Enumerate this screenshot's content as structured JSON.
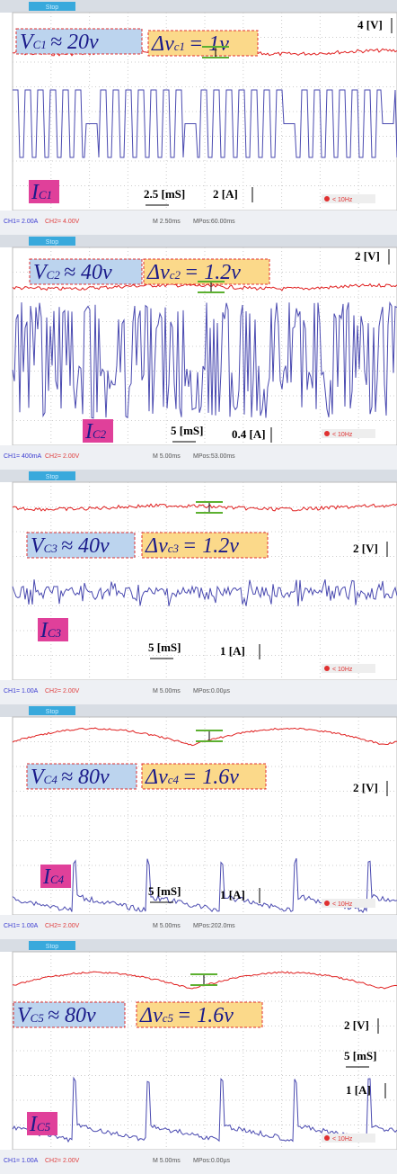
{
  "panels": [
    {
      "top": {
        "state": "Stop"
      },
      "voltage": {
        "main": "V",
        "sub": "C1",
        "rest": "≈ 20v"
      },
      "ripple": {
        "main": "Δv",
        "sub": "c1",
        "rest": "= 1v"
      },
      "current": {
        "main": "I",
        "sub": "C1"
      },
      "v_scale": "4 [V]",
      "time_scale": "2.5 [mS]",
      "a_scale": "2 [A]",
      "trigger": "< 10Hz",
      "status": [
        "CH1= 2.00A",
        "CH2= 4.00V",
        "M 2.50ms",
        "MPos:60.00ms"
      ]
    },
    {
      "top": {
        "state": "Stop"
      },
      "voltage": {
        "main": "V",
        "sub": "C2",
        "rest": "≈ 40v"
      },
      "ripple": {
        "main": "Δv",
        "sub": "c2",
        "rest": "= 1.2v"
      },
      "current": {
        "main": "I",
        "sub": "C2"
      },
      "v_scale": "2 [V]",
      "time_scale": "5 [mS]",
      "a_scale": "0.4 [A]",
      "trigger": "< 10Hz",
      "status": [
        "CH1= 400mA",
        "CH2= 2.00V",
        "M 5.00ms",
        "MPos:53.00ms"
      ]
    },
    {
      "top": {
        "state": "Stop"
      },
      "voltage": {
        "main": "V",
        "sub": "C3",
        "rest": "≈ 40v"
      },
      "ripple": {
        "main": "Δv",
        "sub": "c3",
        "rest": "= 1.2v"
      },
      "current": {
        "main": "I",
        "sub": "C3"
      },
      "v_scale": "2 [V]",
      "time_scale": "5 [mS]",
      "a_scale": "1 [A]",
      "trigger": "< 10Hz",
      "status": [
        "CH1= 1.00A",
        "CH2= 2.00V",
        "M 5.00ms",
        "MPos:0.00µs"
      ]
    },
    {
      "top": {
        "state": "Stop"
      },
      "voltage": {
        "main": "V",
        "sub": "C4",
        "rest": "≈ 80v"
      },
      "ripple": {
        "main": "Δv",
        "sub": "c4",
        "rest": "= 1.6v"
      },
      "current": {
        "main": "I",
        "sub": "C4"
      },
      "v_scale": "2 [V]",
      "time_scale": "5 [mS]",
      "a_scale": "1 [A]",
      "trigger": "< 10Hz",
      "status": [
        "CH1= 1.00A",
        "CH2= 2.00V",
        "M 5.00ms",
        "MPos:202.0ms"
      ]
    },
    {
      "top": {
        "state": "Stop"
      },
      "voltage": {
        "main": "V",
        "sub": "C5",
        "rest": "≈ 80v"
      },
      "ripple": {
        "main": "Δv",
        "sub": "c5",
        "rest": "= 1.6v"
      },
      "current": {
        "main": "I",
        "sub": "C5"
      },
      "v_scale": "2 [V]",
      "time_scale": "5 [mS]",
      "a_scale": "1 [A]",
      "trigger": "< 10Hz",
      "status": [
        "CH1= 1.00A",
        "CH2= 2.00V",
        "M 5.00ms",
        "MPos:0.00µs"
      ]
    }
  ]
}
